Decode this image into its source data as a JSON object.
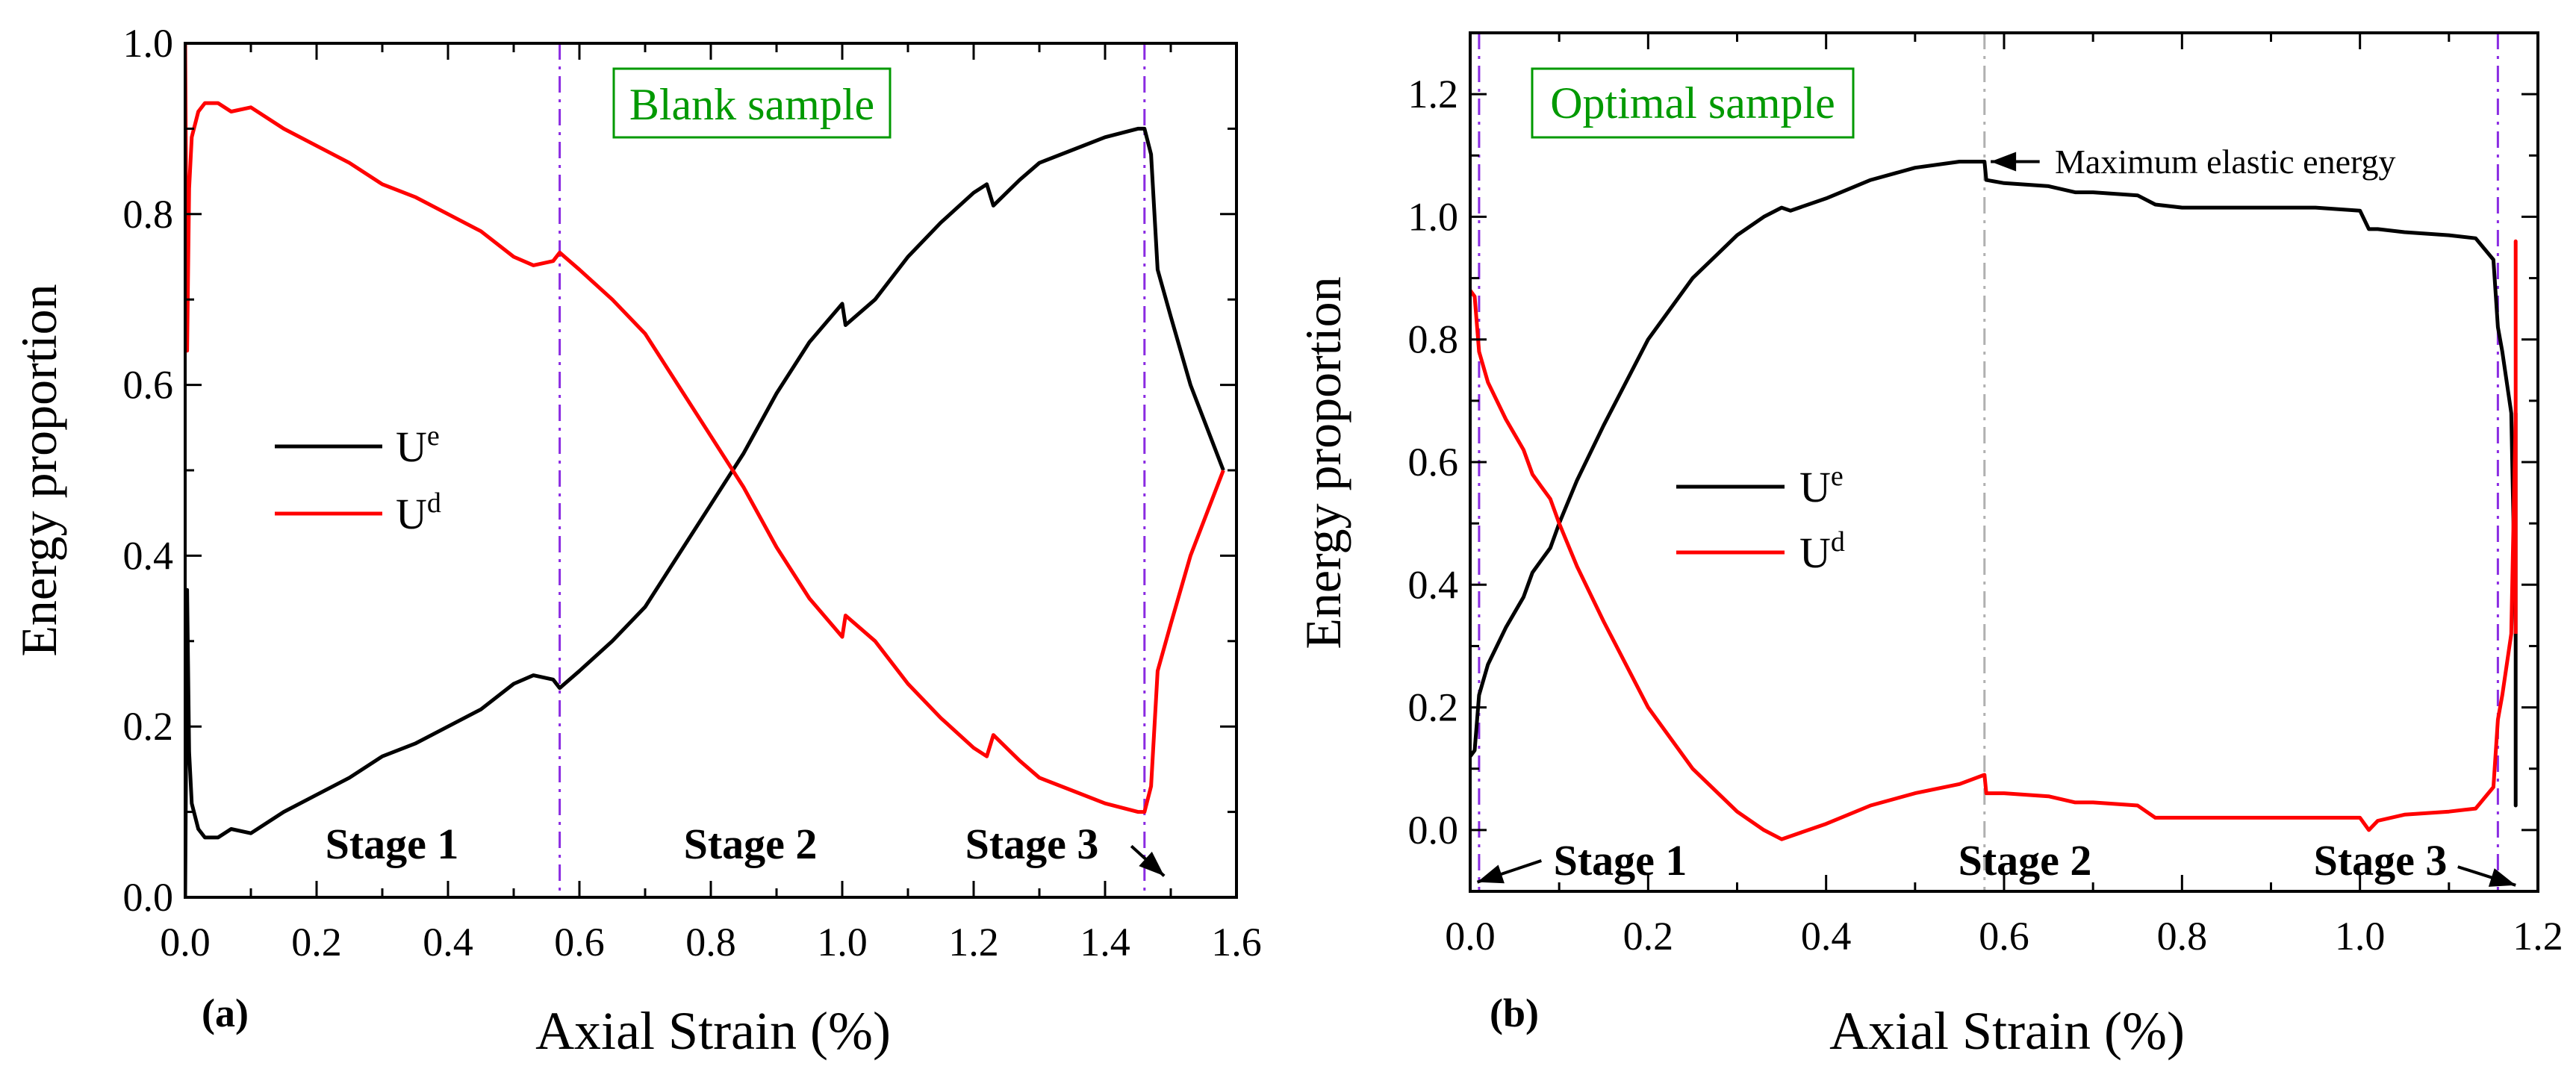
{
  "chart_data": [
    {
      "type": "line",
      "panel_label": "(a)",
      "xlabel": "Axial Strain (%)",
      "ylabel": "Energy proportion",
      "xlim": [
        0.0,
        1.6
      ],
      "ylim": [
        0.0,
        1.0
      ],
      "x_ticks": [
        0.0,
        0.2,
        0.4,
        0.6,
        0.8,
        1.0,
        1.2,
        1.4,
        1.6
      ],
      "y_ticks": [
        0.0,
        0.2,
        0.4,
        0.6,
        0.8,
        1.0
      ],
      "x_tick_labels": [
        "0.0",
        "0.2",
        "0.4",
        "0.6",
        "0.8",
        "1.0",
        "1.2",
        "1.4",
        "1.6"
      ],
      "y_tick_labels": [
        "0.0",
        "0.2",
        "0.4",
        "0.6",
        "0.8",
        "1.0"
      ],
      "title_box": "Blank sample",
      "title_box_color": "#009900",
      "legend": [
        {
          "base": "U",
          "sup": "e",
          "color": "#000000"
        },
        {
          "base": "U",
          "sup": "d",
          "color": "#ff0000"
        }
      ],
      "vlines": [
        {
          "x": 0.57,
          "color": "#8a2be2",
          "style": "dashdot"
        },
        {
          "x": 1.46,
          "color": "#8a2be2",
          "style": "dashdot"
        }
      ],
      "stage_labels": [
        {
          "text": "Stage 1",
          "x": 0.32,
          "y": 0.06
        },
        {
          "text": "Stage 2",
          "x": 0.86,
          "y": 0.06
        },
        {
          "text": "Stage 3",
          "x": 1.37,
          "y": 0.06
        }
      ],
      "annotations": [],
      "arrows": [
        {
          "from": [
            1.44,
            0.06
          ],
          "to": [
            1.49,
            0.025
          ]
        }
      ],
      "series": [
        {
          "name": "Ue",
          "color": "#000000",
          "x": [
            0.0,
            0.003,
            0.006,
            0.01,
            0.02,
            0.03,
            0.05,
            0.07,
            0.1,
            0.15,
            0.2,
            0.25,
            0.3,
            0.35,
            0.4,
            0.45,
            0.5,
            0.53,
            0.56,
            0.57,
            0.6,
            0.65,
            0.7,
            0.75,
            0.8,
            0.85,
            0.9,
            0.95,
            1.0,
            1.005,
            1.05,
            1.1,
            1.15,
            1.2,
            1.22,
            1.23,
            1.27,
            1.3,
            1.35,
            1.4,
            1.45,
            1.46,
            1.47,
            1.48,
            1.5,
            1.53,
            1.55,
            1.58
          ],
          "y": [
            0.0,
            0.36,
            0.17,
            0.11,
            0.08,
            0.07,
            0.07,
            0.08,
            0.075,
            0.1,
            0.12,
            0.14,
            0.165,
            0.18,
            0.2,
            0.22,
            0.25,
            0.26,
            0.255,
            0.245,
            0.265,
            0.3,
            0.34,
            0.4,
            0.46,
            0.52,
            0.59,
            0.65,
            0.695,
            0.67,
            0.7,
            0.75,
            0.79,
            0.825,
            0.835,
            0.81,
            0.84,
            0.86,
            0.875,
            0.89,
            0.9,
            0.9,
            0.87,
            0.735,
            0.68,
            0.6,
            0.56,
            0.5
          ]
        },
        {
          "name": "Ud",
          "color": "#ff0000",
          "x": [
            0.0,
            0.003,
            0.006,
            0.01,
            0.02,
            0.03,
            0.05,
            0.07,
            0.1,
            0.15,
            0.2,
            0.25,
            0.3,
            0.35,
            0.4,
            0.45,
            0.5,
            0.53,
            0.56,
            0.57,
            0.6,
            0.65,
            0.7,
            0.75,
            0.8,
            0.85,
            0.9,
            0.95,
            1.0,
            1.005,
            1.05,
            1.1,
            1.15,
            1.2,
            1.22,
            1.23,
            1.27,
            1.3,
            1.35,
            1.4,
            1.45,
            1.46,
            1.47,
            1.48,
            1.5,
            1.53,
            1.55,
            1.58
          ],
          "y": [
            1.0,
            0.64,
            0.83,
            0.89,
            0.92,
            0.93,
            0.93,
            0.92,
            0.925,
            0.9,
            0.88,
            0.86,
            0.835,
            0.82,
            0.8,
            0.78,
            0.75,
            0.74,
            0.745,
            0.755,
            0.735,
            0.7,
            0.66,
            0.6,
            0.54,
            0.48,
            0.41,
            0.35,
            0.305,
            0.33,
            0.3,
            0.25,
            0.21,
            0.175,
            0.165,
            0.19,
            0.16,
            0.14,
            0.125,
            0.11,
            0.1,
            0.1,
            0.13,
            0.265,
            0.32,
            0.4,
            0.44,
            0.5
          ]
        }
      ]
    },
    {
      "type": "line",
      "panel_label": "(b)",
      "xlabel": "Axial Strain (%)",
      "ylabel": "Energy proportion",
      "xlim": [
        0.0,
        1.2
      ],
      "ylim": [
        -0.1,
        1.3
      ],
      "x_ticks": [
        0.0,
        0.2,
        0.4,
        0.6,
        0.8,
        1.0,
        1.2
      ],
      "y_ticks": [
        0.0,
        0.2,
        0.4,
        0.6,
        0.8,
        1.0,
        1.2
      ],
      "x_tick_labels": [
        "0.0",
        "0.2",
        "0.4",
        "0.6",
        "0.8",
        "1.0",
        "1.2"
      ],
      "y_tick_labels": [
        "0.0",
        "0.2",
        "0.4",
        "0.6",
        "0.8",
        "1.0",
        "1.2"
      ],
      "title_box": "Optimal sample",
      "title_box_color": "#009900",
      "legend": [
        {
          "base": "U",
          "sup": "e",
          "color": "#000000"
        },
        {
          "base": "U",
          "sup": "d",
          "color": "#ff0000"
        }
      ],
      "vlines": [
        {
          "x": 0.01,
          "color": "#8a2be2",
          "style": "dashdot"
        },
        {
          "x": 0.578,
          "color": "#b0b0b0",
          "style": "dashdot"
        },
        {
          "x": 1.155,
          "color": "#8a2be2",
          "style": "dashdot"
        }
      ],
      "stage_labels": [
        {
          "text": "Stage 1",
          "x": 0.17,
          "y": -0.05
        },
        {
          "text": "Stage 2",
          "x": 0.61,
          "y": -0.05
        },
        {
          "text": "Stage 3",
          "x": 1.06,
          "y": -0.05
        }
      ],
      "annotations": [
        {
          "text": "Maximum elastic energy",
          "x": 0.663,
          "y": 1.09
        }
      ],
      "arrows": [
        {
          "from": [
            0.08,
            -0.05
          ],
          "to": [
            0.008,
            -0.085
          ]
        },
        {
          "from": [
            0.64,
            1.09
          ],
          "to": [
            0.585,
            1.09
          ]
        },
        {
          "from": [
            1.11,
            -0.06
          ],
          "to": [
            1.175,
            -0.09
          ]
        }
      ],
      "series": [
        {
          "name": "Ue",
          "color": "#000000",
          "x": [
            0.0,
            0.005,
            0.01,
            0.02,
            0.04,
            0.06,
            0.07,
            0.08,
            0.09,
            0.1,
            0.12,
            0.15,
            0.2,
            0.25,
            0.3,
            0.33,
            0.35,
            0.36,
            0.4,
            0.45,
            0.5,
            0.55,
            0.578,
            0.58,
            0.6,
            0.65,
            0.68,
            0.7,
            0.75,
            0.77,
            0.8,
            0.85,
            0.9,
            0.95,
            1.0,
            1.01,
            1.02,
            1.05,
            1.1,
            1.13,
            1.15,
            1.155,
            1.16,
            1.17,
            1.175,
            1.175,
            1.175
          ],
          "y": [
            0.12,
            0.13,
            0.22,
            0.27,
            0.33,
            0.38,
            0.42,
            0.44,
            0.46,
            0.5,
            0.57,
            0.66,
            0.8,
            0.9,
            0.97,
            1.0,
            1.015,
            1.01,
            1.03,
            1.06,
            1.08,
            1.09,
            1.09,
            1.06,
            1.055,
            1.05,
            1.04,
            1.04,
            1.035,
            1.02,
            1.015,
            1.015,
            1.015,
            1.015,
            1.01,
            0.98,
            0.98,
            0.975,
            0.97,
            0.965,
            0.93,
            0.82,
            0.78,
            0.68,
            0.32,
            0.04,
            0.68
          ]
        },
        {
          "name": "Ud",
          "color": "#ff0000",
          "x": [
            0.0,
            0.005,
            0.01,
            0.02,
            0.04,
            0.06,
            0.07,
            0.08,
            0.09,
            0.1,
            0.12,
            0.15,
            0.2,
            0.25,
            0.3,
            0.33,
            0.35,
            0.36,
            0.4,
            0.45,
            0.5,
            0.55,
            0.578,
            0.58,
            0.6,
            0.65,
            0.68,
            0.7,
            0.75,
            0.77,
            0.8,
            0.85,
            0.9,
            0.95,
            1.0,
            1.01,
            1.02,
            1.05,
            1.1,
            1.13,
            1.15,
            1.155,
            1.16,
            1.17,
            1.175,
            1.175,
            1.175
          ],
          "y": [
            0.88,
            0.87,
            0.78,
            0.73,
            0.67,
            0.62,
            0.58,
            0.56,
            0.54,
            0.5,
            0.43,
            0.34,
            0.2,
            0.1,
            0.03,
            0.0,
            -0.015,
            -0.01,
            0.01,
            0.04,
            0.06,
            0.075,
            0.09,
            0.06,
            0.06,
            0.055,
            0.045,
            0.045,
            0.04,
            0.02,
            0.02,
            0.02,
            0.02,
            0.02,
            0.02,
            0.0,
            0.015,
            0.025,
            0.03,
            0.035,
            0.07,
            0.18,
            0.22,
            0.32,
            0.68,
            0.96,
            0.32
          ]
        }
      ]
    }
  ]
}
